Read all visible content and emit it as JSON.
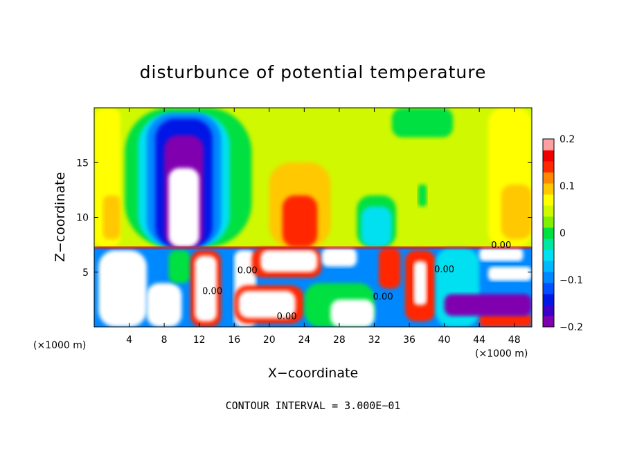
{
  "chart_data": {
    "type": "heatmap",
    "title": "disturbunce of potential temperature",
    "xlabel": "X−coordinate",
    "ylabel": "Z−coordinate",
    "x_unit": "(×1000 m)",
    "z_unit": "(×1000 m)",
    "x_range": [
      0,
      50
    ],
    "z_range": [
      0,
      20
    ],
    "x_ticks": [
      4,
      8,
      12,
      16,
      20,
      24,
      28,
      32,
      36,
      40,
      44,
      48
    ],
    "x_tick_labels": [
      "4",
      "8",
      "12",
      "16",
      "20",
      "24",
      "28",
      "32",
      "36",
      "40",
      "44",
      "48"
    ],
    "z_ticks": [
      5,
      10,
      15
    ],
    "z_tick_labels": [
      "5",
      "10",
      "15"
    ],
    "colorbar": {
      "range": [
        -0.2,
        0.2
      ],
      "ticks": [
        -0.2,
        -0.1,
        0,
        0.1,
        0.2
      ],
      "tick_labels": [
        "−0.2",
        "−0.1",
        "0",
        "0.1",
        "0.2"
      ],
      "levels": [
        {
          "value": -0.2,
          "color": "#8000b0"
        },
        {
          "value": -0.175,
          "color": "#3c00c8"
        },
        {
          "value": -0.15,
          "color": "#0018e6"
        },
        {
          "value": -0.125,
          "color": "#0050ff"
        },
        {
          "value": -0.1,
          "color": "#0088ff"
        },
        {
          "value": -0.075,
          "color": "#00b8ff"
        },
        {
          "value": -0.05,
          "color": "#00e0f0"
        },
        {
          "value": -0.025,
          "color": "#00e8a0"
        },
        {
          "value": 0,
          "color": "#00e040"
        },
        {
          "value": 0.025,
          "color": "#80f000"
        },
        {
          "value": 0.05,
          "color": "#d0f800"
        },
        {
          "value": 0.075,
          "color": "#ffff00"
        },
        {
          "value": 0.1,
          "color": "#ffc800"
        },
        {
          "value": 0.125,
          "color": "#ff8800"
        },
        {
          "value": 0.15,
          "color": "#ff2800"
        },
        {
          "value": 0.175,
          "color": "#f00000"
        },
        {
          "value": 0.2,
          "color": "#ffa0a0"
        }
      ]
    },
    "regions": [
      {
        "x": [
          0,
          50
        ],
        "z": [
          7.3,
          20
        ],
        "value": 0.04
      },
      {
        "x": [
          0,
          3
        ],
        "z": [
          7.3,
          20
        ],
        "value": 0.07
      },
      {
        "x": [
          45,
          50
        ],
        "z": [
          7.3,
          20
        ],
        "value": 0.07
      },
      {
        "x": [
          1,
          3
        ],
        "z": [
          8,
          12
        ],
        "value": 0.1
      },
      {
        "x": [
          46.5,
          50
        ],
        "z": [
          8,
          13
        ],
        "value": 0.1
      },
      {
        "x": [
          3.5,
          18
        ],
        "z": [
          7.3,
          20
        ],
        "value": 0.0
      },
      {
        "x": [
          5,
          15.5
        ],
        "z": [
          7.3,
          19.5
        ],
        "value": -0.05
      },
      {
        "x": [
          6,
          14.5
        ],
        "z": [
          7.3,
          19.5
        ],
        "value": -0.1
      },
      {
        "x": [
          7,
          13.5
        ],
        "z": [
          7.3,
          19
        ],
        "value": -0.15
      },
      {
        "x": [
          8,
          12.5
        ],
        "z": [
          7.3,
          17.5
        ],
        "value": -0.2
      },
      {
        "x": [
          8.5,
          12
        ],
        "z": [
          7.3,
          14.5
        ],
        "value": -0.3
      },
      {
        "x": [
          20,
          27
        ],
        "z": [
          7.3,
          15
        ],
        "value": 0.1
      },
      {
        "x": [
          21.5,
          25.5
        ],
        "z": [
          7.3,
          12
        ],
        "value": 0.15
      },
      {
        "x": [
          30,
          34.5
        ],
        "z": [
          7.3,
          12
        ],
        "value": 0.0
      },
      {
        "x": [
          30.5,
          34
        ],
        "z": [
          7.3,
          11
        ],
        "value": -0.04
      },
      {
        "x": [
          34,
          41
        ],
        "z": [
          17.3,
          20
        ],
        "value": 0.0
      },
      {
        "x": [
          37,
          38
        ],
        "z": [
          11,
          13
        ],
        "value": 0.0
      },
      {
        "x": [
          0,
          50
        ],
        "z": [
          0,
          7.3
        ],
        "value": -0.1
      },
      {
        "x": [
          0.5,
          6
        ],
        "z": [
          0,
          7
        ],
        "value": -0.3
      },
      {
        "x": [
          6,
          10
        ],
        "z": [
          0,
          4
        ],
        "value": -0.3
      },
      {
        "x": [
          8.5,
          11
        ],
        "z": [
          4,
          7
        ],
        "value": 0.0
      },
      {
        "x": [
          11,
          14.5
        ],
        "z": [
          0,
          7
        ],
        "value": 0.15
      },
      {
        "x": [
          11.5,
          14
        ],
        "z": [
          0.5,
          6.5
        ],
        "value": 0.3
      },
      {
        "x": [
          16,
          18.5
        ],
        "z": [
          0,
          7
        ],
        "value": -0.3
      },
      {
        "x": [
          18,
          26
        ],
        "z": [
          4.5,
          7.2
        ],
        "value": 0.15
      },
      {
        "x": [
          19,
          25.5
        ],
        "z": [
          5,
          7
        ],
        "value": 0.3
      },
      {
        "x": [
          26,
          30
        ],
        "z": [
          5.5,
          7.2
        ],
        "value": 0.3
      },
      {
        "x": [
          16,
          24
        ],
        "z": [
          0.3,
          3.8
        ],
        "value": 0.15
      },
      {
        "x": [
          16.5,
          23
        ],
        "z": [
          0.8,
          3.3
        ],
        "value": 0.3
      },
      {
        "x": [
          24,
          32
        ],
        "z": [
          0,
          4
        ],
        "value": 0.0
      },
      {
        "x": [
          27,
          32
        ],
        "z": [
          0,
          2.5
        ],
        "value": 0.3
      },
      {
        "x": [
          32.5,
          35
        ],
        "z": [
          3.5,
          7.2
        ],
        "value": 0.15
      },
      {
        "x": [
          35.5,
          39
        ],
        "z": [
          0.5,
          7
        ],
        "value": 0.15
      },
      {
        "x": [
          36.5,
          38
        ],
        "z": [
          2,
          6
        ],
        "value": 0.3
      },
      {
        "x": [
          39,
          44
        ],
        "z": [
          0,
          7.2
        ],
        "value": -0.05
      },
      {
        "x": [
          44,
          49
        ],
        "z": [
          6,
          7.2
        ],
        "value": 0.3
      },
      {
        "x": [
          45,
          50
        ],
        "z": [
          4.2,
          5.5
        ],
        "value": 0.3
      },
      {
        "x": [
          44,
          50
        ],
        "z": [
          0,
          1.2
        ],
        "value": 0.15
      },
      {
        "x": [
          40,
          50
        ],
        "z": [
          1,
          3
        ],
        "value": -0.2
      },
      {
        "x": [
          0,
          50
        ],
        "z": [
          7.1,
          7.35
        ],
        "value": 0.18
      }
    ],
    "contours": [
      {
        "label": "0.00",
        "label_at": [
          17.5,
          4.9
        ]
      },
      {
        "label": "0.00",
        "label_at": [
          13.5,
          3.0
        ]
      },
      {
        "label": "0.00",
        "label_at": [
          22.0,
          0.7
        ]
      },
      {
        "label": "0.00",
        "label_at": [
          33.0,
          2.5
        ]
      },
      {
        "label": "0.00",
        "label_at": [
          40.0,
          5.0
        ]
      },
      {
        "label": "0.00",
        "label_at": [
          46.5,
          7.2
        ]
      }
    ],
    "annotation": "CONTOUR INTERVAL = 3.000E−01"
  }
}
